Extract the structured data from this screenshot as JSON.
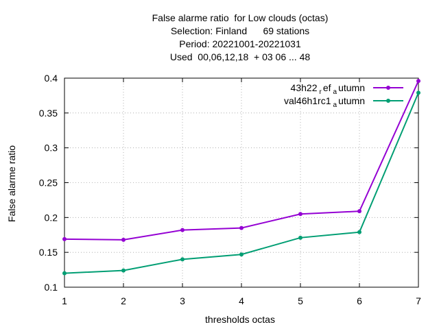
{
  "chart_data": {
    "type": "line",
    "title": [
      "False alarme ratio  for Low clouds (octas)",
      "Selection: Finland      69 stations",
      "Period: 20221001-20221031",
      "Used  00,06,12,18  + 03 06 ... 48"
    ],
    "xlabel": "thresholds octas",
    "ylabel": "False alarme ratio",
    "x": [
      1,
      2,
      3,
      4,
      5,
      6,
      7
    ],
    "xlim": [
      1,
      7
    ],
    "ylim": [
      0.1,
      0.4
    ],
    "xticks": [
      "1",
      "2",
      "3",
      "4",
      "5",
      "6",
      "7"
    ],
    "yticks": [
      "0.1",
      "0.15",
      "0.2",
      "0.25",
      "0.3",
      "0.35",
      "0.4"
    ],
    "grid": true,
    "legend_position": "top-right",
    "series": [
      {
        "name": "43h22_ref_autumn",
        "label_main": "43h22",
        "label_sub1": "r",
        "label_mid": "ef",
        "label_sub2": "a",
        "label_tail": "utumn",
        "color": "#9400d3",
        "values": [
          0.169,
          0.168,
          0.182,
          0.185,
          0.205,
          0.209,
          0.396
        ]
      },
      {
        "name": "val46h1rc1_autumn",
        "label_main": "val46h1rc1",
        "label_sub1": "a",
        "label_tail": "utumn",
        "color": "#009e73",
        "values": [
          0.12,
          0.124,
          0.14,
          0.147,
          0.171,
          0.179,
          0.379
        ]
      }
    ]
  }
}
